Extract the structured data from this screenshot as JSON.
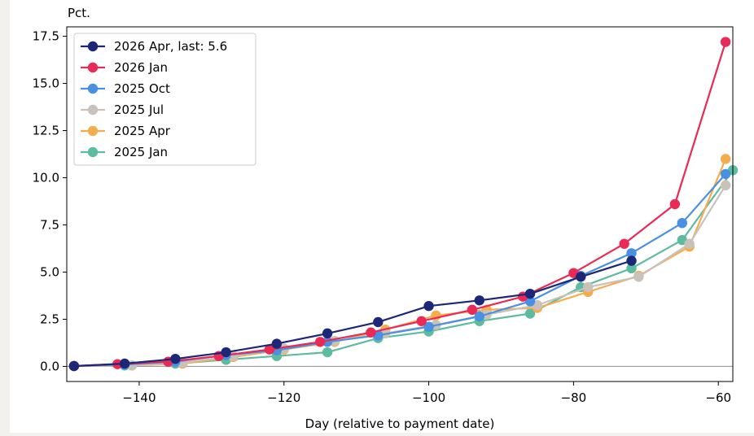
{
  "chart_data": {
    "type": "line",
    "ylabel_top": "Pct.",
    "xlabel": "Day (relative to payment date)",
    "xlim": [
      -150,
      -58
    ],
    "ylim": [
      -0.8,
      18
    ],
    "xticks": [
      -140,
      -120,
      -100,
      -80,
      -60
    ],
    "xtick_labels": [
      "−140",
      "−120",
      "−100",
      "−80",
      "−60"
    ],
    "yticks": [
      0,
      2.5,
      5,
      7.5,
      10,
      12.5,
      15,
      17.5
    ],
    "ytick_labels": [
      "0.0",
      "2.5",
      "5.0",
      "7.5",
      "10.0",
      "12.5",
      "15.0",
      "17.5"
    ],
    "zero_line": true,
    "legend_position": "top-left",
    "series": [
      {
        "name": "2025 Jan",
        "color": "#5dbb9f",
        "x": [
          -149,
          -142,
          -135,
          -128,
          -121,
          -114,
          -107,
          -100,
          -93,
          -86,
          -79,
          -72,
          -65,
          -58
        ],
        "y": [
          0.02,
          0.05,
          0.15,
          0.35,
          0.55,
          0.75,
          1.5,
          1.85,
          2.4,
          2.8,
          4.2,
          5.2,
          6.7,
          10.4
        ]
      },
      {
        "name": "2025 Apr",
        "color": "#f4ac4f",
        "x": [
          -149,
          -141,
          -134,
          -127,
          -120,
          -113,
          -106,
          -99,
          -92,
          -85,
          -78,
          -71,
          -64,
          -59
        ],
        "y": [
          0.02,
          0.05,
          0.15,
          0.5,
          0.9,
          1.3,
          1.95,
          2.7,
          3.0,
          3.1,
          3.95,
          4.8,
          6.35,
          11.0
        ]
      },
      {
        "name": "2025 Jul",
        "color": "#c9c2ba",
        "x": [
          -149,
          -141,
          -134,
          -127,
          -120,
          -113,
          -106,
          -99,
          -92,
          -85,
          -78,
          -71,
          -64,
          -59
        ],
        "y": [
          0.02,
          0.05,
          0.2,
          0.55,
          0.95,
          1.35,
          1.75,
          2.2,
          2.75,
          3.25,
          4.2,
          4.75,
          6.5,
          9.6
        ]
      },
      {
        "name": "2025 Oct",
        "color": "#4a90e2",
        "x": [
          -149,
          -142,
          -135,
          -128,
          -121,
          -114,
          -107,
          -100,
          -93,
          -86,
          -79,
          -72,
          -65,
          -59
        ],
        "y": [
          0.02,
          0.1,
          0.25,
          0.6,
          0.85,
          1.3,
          1.65,
          2.1,
          2.65,
          3.45,
          4.8,
          6.0,
          7.6,
          10.2
        ]
      },
      {
        "name": "2026 Jan",
        "color": "#ea2a56",
        "x": [
          -149,
          -143,
          -136,
          -129,
          -122,
          -115,
          -108,
          -101,
          -94,
          -87,
          -80,
          -73,
          -66,
          -59
        ],
        "y": [
          0.02,
          0.12,
          0.25,
          0.55,
          0.9,
          1.3,
          1.8,
          2.4,
          3.0,
          3.7,
          4.95,
          6.5,
          8.6,
          17.2
        ]
      },
      {
        "name": "2026 Apr, last: 5.6",
        "color": "#1d2778",
        "x": [
          -149,
          -142,
          -135,
          -128,
          -121,
          -114,
          -107,
          -100,
          -93,
          -86,
          -79,
          -72
        ],
        "y": [
          0.02,
          0.15,
          0.4,
          0.75,
          1.2,
          1.75,
          2.35,
          3.2,
          3.5,
          3.85,
          4.75,
          5.6
        ]
      }
    ],
    "legend_order": [
      "2026 Apr, last: 5.6",
      "2026 Jan",
      "2025 Oct",
      "2025 Jul",
      "2025 Apr",
      "2025 Jan"
    ]
  }
}
